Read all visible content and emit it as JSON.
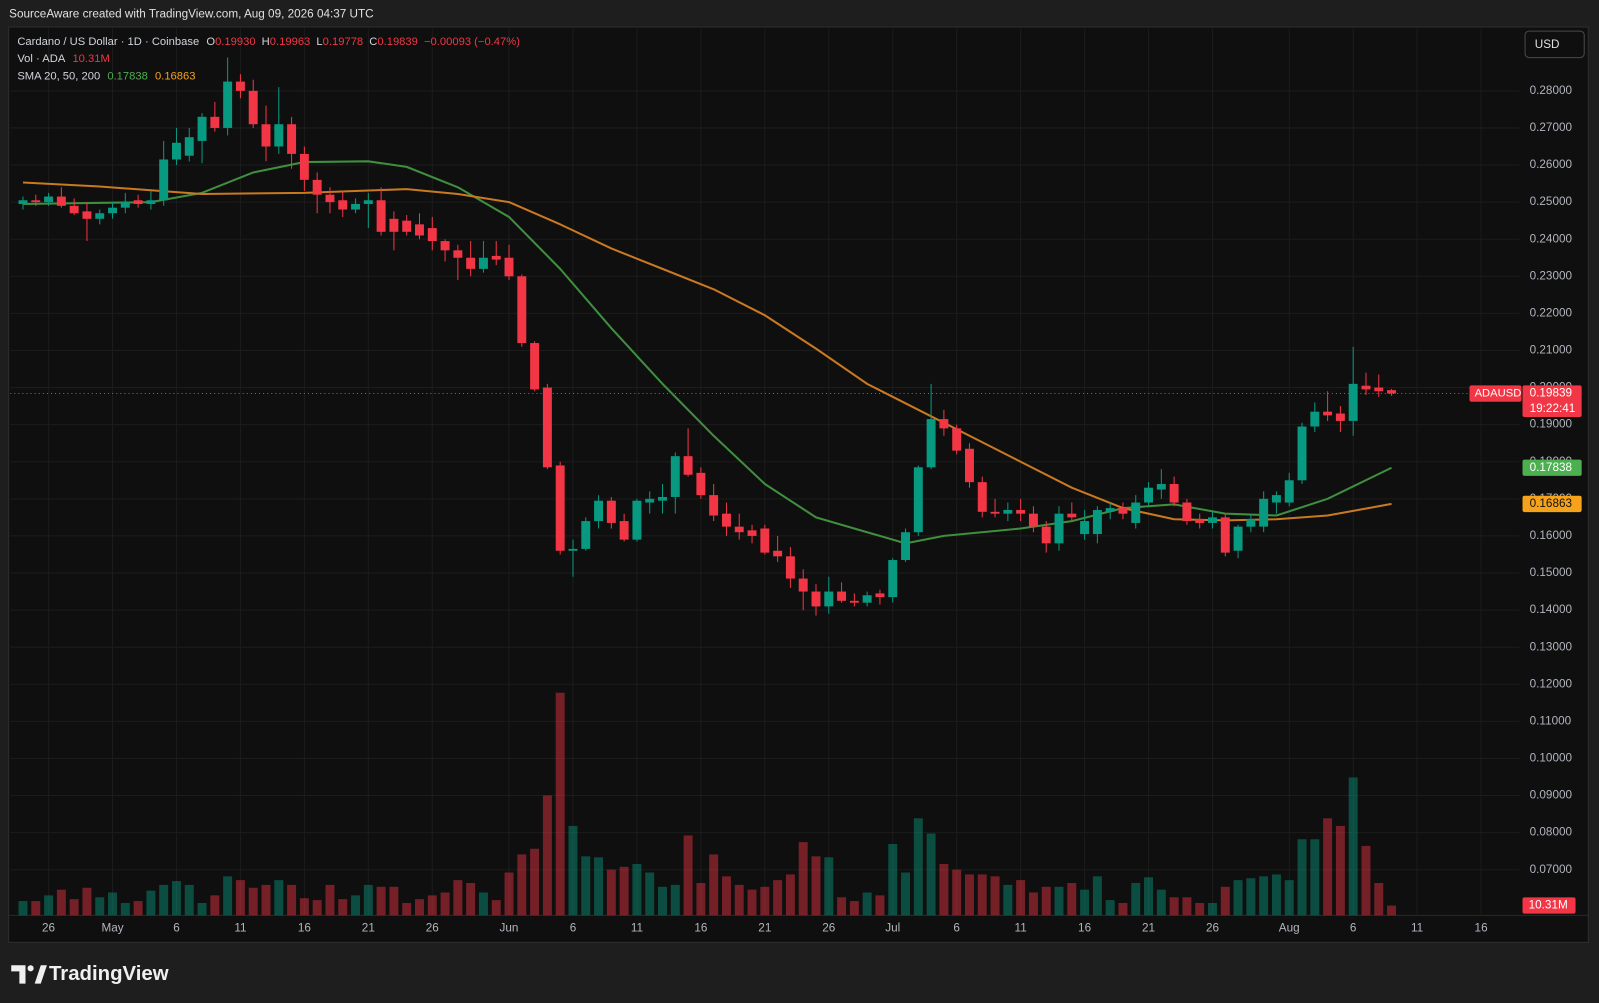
{
  "header": {
    "credit": "SourceAware created with TradingView.com, Aug 09, 2026 04:37 UTC",
    "currency": "USD",
    "brand": "TradingView"
  },
  "chart_data": {
    "type": "candlestick",
    "title": "Cardano / US Dollar · 1D · Coinbase",
    "symbol": "ADAUSD",
    "countdown": "19:22:41",
    "ohlc_keys": [
      "O",
      "H",
      "L",
      "C"
    ],
    "x": [
      "2026-04-24",
      "2026-04-25",
      "2026-04-26",
      "2026-04-27",
      "2026-04-28",
      "2026-04-29",
      "2026-04-30",
      "2026-05-01",
      "2026-05-02",
      "2026-05-03",
      "2026-05-04",
      "2026-05-05",
      "2026-05-06",
      "2026-05-07",
      "2026-05-08",
      "2026-05-09",
      "2026-05-10",
      "2026-05-11",
      "2026-05-12",
      "2026-05-13",
      "2026-05-14",
      "2026-05-15",
      "2026-05-16",
      "2026-05-17",
      "2026-05-18",
      "2026-05-19",
      "2026-05-20",
      "2026-05-21",
      "2026-05-22",
      "2026-05-23",
      "2026-05-24",
      "2026-05-25",
      "2026-05-26",
      "2026-05-27",
      "2026-05-28",
      "2026-05-29",
      "2026-05-30",
      "2026-05-31",
      "2026-06-01",
      "2026-06-02",
      "2026-06-03",
      "2026-06-04",
      "2026-06-05",
      "2026-06-06",
      "2026-06-07",
      "2026-06-08",
      "2026-06-09",
      "2026-06-10",
      "2026-06-11",
      "2026-06-12",
      "2026-06-13",
      "2026-06-14",
      "2026-06-15",
      "2026-06-16",
      "2026-06-17",
      "2026-06-18",
      "2026-06-19",
      "2026-06-20",
      "2026-06-21",
      "2026-06-22",
      "2026-06-23",
      "2026-06-24",
      "2026-06-25",
      "2026-06-26",
      "2026-06-27",
      "2026-06-28",
      "2026-06-29",
      "2026-06-30",
      "2026-07-01",
      "2026-07-02",
      "2026-07-03",
      "2026-07-04",
      "2026-07-05",
      "2026-07-06",
      "2026-07-07",
      "2026-07-08",
      "2026-07-09",
      "2026-07-10",
      "2026-07-11",
      "2026-07-12",
      "2026-07-13",
      "2026-07-14",
      "2026-07-15",
      "2026-07-16",
      "2026-07-17",
      "2026-07-18",
      "2026-07-19",
      "2026-07-20",
      "2026-07-21",
      "2026-07-22",
      "2026-07-23",
      "2026-07-24",
      "2026-07-25",
      "2026-07-26",
      "2026-07-27",
      "2026-07-28",
      "2026-07-29",
      "2026-07-30",
      "2026-07-31",
      "2026-08-01",
      "2026-08-02",
      "2026-08-03",
      "2026-08-04",
      "2026-08-05",
      "2026-08-06",
      "2026-08-07",
      "2026-08-08",
      "2026-08-09"
    ],
    "open": [
      0.2495,
      0.2505,
      0.25,
      0.2515,
      0.249,
      0.2475,
      0.2455,
      0.247,
      0.2485,
      0.2505,
      0.2495,
      0.2505,
      0.2615,
      0.2625,
      0.2665,
      0.273,
      0.27,
      0.2825,
      0.28,
      0.271,
      0.265,
      0.271,
      0.263,
      0.256,
      0.252,
      0.2505,
      0.248,
      0.2495,
      0.2505,
      0.2455,
      0.245,
      0.244,
      0.243,
      0.2395,
      0.237,
      0.235,
      0.232,
      0.2355,
      0.235,
      0.23,
      0.212,
      0.2,
      0.179,
      0.156,
      0.1565,
      0.164,
      0.1695,
      0.164,
      0.159,
      0.169,
      0.1695,
      0.1705,
      0.1815,
      0.177,
      0.171,
      0.166,
      0.1625,
      0.1615,
      0.162,
      0.156,
      0.1545,
      0.1485,
      0.145,
      0.141,
      0.145,
      0.1425,
      0.142,
      0.1445,
      0.1435,
      0.1535,
      0.161,
      0.1785,
      0.1915,
      0.189,
      0.1835,
      0.1745,
      0.1665,
      0.166,
      0.167,
      0.166,
      0.1625,
      0.158,
      0.166,
      0.1605,
      0.1605,
      0.1665,
      0.1675,
      0.1635,
      0.169,
      0.1725,
      0.174,
      0.169,
      0.1645,
      0.1635,
      0.165,
      0.156,
      0.1625,
      0.1625,
      0.169,
      0.169,
      0.175,
      0.1895,
      0.1935,
      0.193,
      0.191,
      0.2005,
      0.2,
      0.1993
    ],
    "high": [
      0.2515,
      0.252,
      0.2525,
      0.254,
      0.251,
      0.25,
      0.248,
      0.25,
      0.2525,
      0.252,
      0.253,
      0.2665,
      0.27,
      0.27,
      0.274,
      0.277,
      0.289,
      0.2845,
      0.283,
      0.276,
      0.281,
      0.273,
      0.265,
      0.258,
      0.254,
      0.253,
      0.251,
      0.2525,
      0.254,
      0.2475,
      0.2465,
      0.247,
      0.246,
      0.24,
      0.2385,
      0.2395,
      0.2395,
      0.2395,
      0.2385,
      0.2305,
      0.2125,
      0.201,
      0.18,
      0.159,
      0.165,
      0.171,
      0.1705,
      0.166,
      0.17,
      0.172,
      0.174,
      0.1825,
      0.189,
      0.1785,
      0.174,
      0.169,
      0.166,
      0.163,
      0.163,
      0.16,
      0.157,
      0.151,
      0.147,
      0.149,
      0.1475,
      0.1445,
      0.145,
      0.1455,
      0.154,
      0.162,
      0.179,
      0.201,
      0.194,
      0.19,
      0.185,
      0.176,
      0.17,
      0.169,
      0.17,
      0.168,
      0.164,
      0.168,
      0.169,
      0.167,
      0.168,
      0.169,
      0.169,
      0.171,
      0.1745,
      0.178,
      0.176,
      0.17,
      0.166,
      0.1665,
      0.166,
      0.163,
      0.166,
      0.172,
      0.172,
      0.177,
      0.1905,
      0.196,
      0.199,
      0.195,
      0.211,
      0.204,
      0.2035,
      0.19963
    ],
    "low": [
      0.248,
      0.249,
      0.249,
      0.2485,
      0.2465,
      0.2395,
      0.244,
      0.2455,
      0.247,
      0.2485,
      0.248,
      0.249,
      0.26,
      0.261,
      0.2605,
      0.269,
      0.268,
      0.278,
      0.27,
      0.261,
      0.263,
      0.259,
      0.253,
      0.247,
      0.247,
      0.246,
      0.247,
      0.243,
      0.241,
      0.237,
      0.241,
      0.24,
      0.237,
      0.234,
      0.229,
      0.23,
      0.231,
      0.233,
      0.229,
      0.211,
      0.199,
      0.178,
      0.155,
      0.149,
      0.156,
      0.162,
      0.162,
      0.1585,
      0.1585,
      0.166,
      0.166,
      0.166,
      0.176,
      0.17,
      0.164,
      0.16,
      0.159,
      0.158,
      0.155,
      0.153,
      0.146,
      0.14,
      0.1385,
      0.139,
      0.142,
      0.141,
      0.141,
      0.1415,
      0.142,
      0.153,
      0.16,
      0.178,
      0.187,
      0.182,
      0.173,
      0.165,
      0.165,
      0.164,
      0.164,
      0.161,
      0.1555,
      0.156,
      0.164,
      0.159,
      0.158,
      0.1645,
      0.1645,
      0.162,
      0.168,
      0.17,
      0.168,
      0.163,
      0.162,
      0.162,
      0.1545,
      0.154,
      0.161,
      0.161,
      0.166,
      0.168,
      0.174,
      0.188,
      0.191,
      0.188,
      0.187,
      0.198,
      0.1975,
      0.19778
    ],
    "close": [
      0.2505,
      0.25,
      0.2515,
      0.249,
      0.247,
      0.2455,
      0.247,
      0.2485,
      0.25,
      0.2495,
      0.2505,
      0.2615,
      0.266,
      0.2675,
      0.273,
      0.27,
      0.2825,
      0.28,
      0.271,
      0.265,
      0.271,
      0.263,
      0.256,
      0.252,
      0.25,
      0.248,
      0.2495,
      0.2505,
      0.242,
      0.242,
      0.242,
      0.241,
      0.2395,
      0.237,
      0.235,
      0.232,
      0.235,
      0.2345,
      0.23,
      0.212,
      0.1995,
      0.1785,
      0.156,
      0.1565,
      0.164,
      0.1695,
      0.1635,
      0.159,
      0.1695,
      0.17,
      0.1705,
      0.1815,
      0.1765,
      0.171,
      0.1655,
      0.1625,
      0.161,
      0.16,
      0.1555,
      0.1545,
      0.1485,
      0.145,
      0.141,
      0.145,
      0.1425,
      0.142,
      0.144,
      0.1435,
      0.1535,
      0.161,
      0.1785,
      0.1915,
      0.189,
      0.183,
      0.1745,
      0.1665,
      0.166,
      0.167,
      0.166,
      0.1625,
      0.158,
      0.166,
      0.165,
      0.164,
      0.167,
      0.1675,
      0.166,
      0.169,
      0.173,
      0.174,
      0.169,
      0.164,
      0.1635,
      0.165,
      0.1555,
      0.1625,
      0.1645,
      0.17,
      0.171,
      0.175,
      0.1895,
      0.1935,
      0.1925,
      0.191,
      0.201,
      0.1995,
      0.199,
      0.19839
    ],
    "last_labels": {
      "open": "0.19930",
      "high": "0.19963",
      "low": "0.19778",
      "close": "0.19839"
    },
    "change_label": "−0.00093 (−0.47%)",
    "colors": {
      "up": "#089981",
      "down": "#f23645"
    },
    "volume": {
      "name": "Vol · ADA",
      "last_label": "10.31M",
      "ylim": [
        0,
        300
      ],
      "values": [
        15,
        15,
        21,
        27,
        17,
        29,
        19,
        24,
        13,
        15,
        26,
        32,
        36,
        32,
        13,
        21,
        41,
        37,
        29,
        32,
        37,
        32,
        18,
        16,
        32,
        17,
        21,
        32,
        30,
        30,
        13,
        17,
        21,
        24,
        37,
        34,
        24,
        16,
        45,
        64,
        70,
        126,
        234,
        94,
        62,
        61,
        48,
        51,
        54,
        45,
        30,
        32,
        84,
        34,
        64,
        41,
        32,
        27,
        30,
        37,
        43,
        77,
        62,
        61,
        19,
        15,
        24,
        21,
        75,
        45,
        102,
        86,
        54,
        48,
        43,
        43,
        41,
        32,
        37,
        24,
        30,
        30,
        34,
        27,
        41,
        16,
        13,
        34,
        40,
        27,
        19,
        19,
        13,
        13,
        30,
        37,
        39,
        41,
        43,
        37,
        80,
        80,
        102,
        94,
        145,
        73,
        34,
        10.31
      ]
    },
    "indicator_name": "SMA 20, 50, 200",
    "series": [
      {
        "color": "#3f8f3f",
        "last_label": "0.17838",
        "x": [
          "2026-04-24",
          "2026-05-04",
          "2026-05-08",
          "2026-05-12",
          "2026-05-16",
          "2026-05-21",
          "2026-05-24",
          "2026-05-28",
          "2026-06-01",
          "2026-06-05",
          "2026-06-09",
          "2026-06-13",
          "2026-06-17",
          "2026-06-21",
          "2026-06-25",
          "2026-06-29",
          "2026-07-02",
          "2026-07-05",
          "2026-07-11",
          "2026-07-15",
          "2026-07-19",
          "2026-07-23",
          "2026-07-27",
          "2026-07-31",
          "2026-08-04",
          "2026-08-09"
        ],
        "values": [
          0.2495,
          0.25,
          0.2525,
          0.258,
          0.2608,
          0.261,
          0.2595,
          0.254,
          0.246,
          0.232,
          0.216,
          0.201,
          0.187,
          0.174,
          0.165,
          0.161,
          0.158,
          0.16,
          0.162,
          0.164,
          0.1675,
          0.1685,
          0.166,
          0.1655,
          0.17,
          0.17838
        ]
      },
      {
        "color": "#c97a20",
        "last_label": "0.16863",
        "x": [
          "2026-04-24",
          "2026-04-30",
          "2026-05-08",
          "2026-05-16",
          "2026-05-24",
          "2026-05-28",
          "2026-06-01",
          "2026-06-05",
          "2026-06-09",
          "2026-06-13",
          "2026-06-17",
          "2026-06-21",
          "2026-06-25",
          "2026-06-29",
          "2026-07-03",
          "2026-07-07",
          "2026-07-11",
          "2026-07-15",
          "2026-07-19",
          "2026-07-23",
          "2026-07-27",
          "2026-07-31",
          "2026-08-04",
          "2026-08-09"
        ],
        "values": [
          0.2553,
          0.2542,
          0.2522,
          0.2525,
          0.2535,
          0.2522,
          0.25,
          0.244,
          0.2375,
          0.232,
          0.2265,
          0.2195,
          0.2105,
          0.201,
          0.194,
          0.187,
          0.18,
          0.173,
          0.1675,
          0.1645,
          0.1642,
          0.1645,
          0.1655,
          0.16863
        ]
      }
    ],
    "xlim": [
      "2026-04-23",
      "2026-08-19"
    ],
    "xticks": [
      {
        "value": "2026-04-26",
        "label": "26"
      },
      {
        "value": "2026-05-01",
        "label": "May"
      },
      {
        "value": "2026-05-06",
        "label": "6"
      },
      {
        "value": "2026-05-11",
        "label": "11"
      },
      {
        "value": "2026-05-16",
        "label": "16"
      },
      {
        "value": "2026-05-21",
        "label": "21"
      },
      {
        "value": "2026-05-26",
        "label": "26"
      },
      {
        "value": "2026-06-01",
        "label": "Jun"
      },
      {
        "value": "2026-06-06",
        "label": "6"
      },
      {
        "value": "2026-06-11",
        "label": "11"
      },
      {
        "value": "2026-06-16",
        "label": "16"
      },
      {
        "value": "2026-06-21",
        "label": "21"
      },
      {
        "value": "2026-06-26",
        "label": "26"
      },
      {
        "value": "2026-07-01",
        "label": "Jul"
      },
      {
        "value": "2026-07-06",
        "label": "6"
      },
      {
        "value": "2026-07-11",
        "label": "11"
      },
      {
        "value": "2026-07-16",
        "label": "16"
      },
      {
        "value": "2026-07-21",
        "label": "21"
      },
      {
        "value": "2026-07-26",
        "label": "26"
      },
      {
        "value": "2026-08-01",
        "label": "Aug"
      },
      {
        "value": "2026-08-06",
        "label": "6"
      },
      {
        "value": "2026-08-11",
        "label": "11"
      },
      {
        "value": "2026-08-16",
        "label": "16"
      }
    ],
    "ylim": [
      0.0577,
      0.2968
    ],
    "yticks": [
      {
        "value": 0.28,
        "label": "0.28000"
      },
      {
        "value": 0.27,
        "label": "0.27000"
      },
      {
        "value": 0.26,
        "label": "0.26000"
      },
      {
        "value": 0.25,
        "label": "0.25000"
      },
      {
        "value": 0.24,
        "label": "0.24000"
      },
      {
        "value": 0.23,
        "label": "0.23000"
      },
      {
        "value": 0.22,
        "label": "0.22000"
      },
      {
        "value": 0.21,
        "label": "0.21000"
      },
      {
        "value": 0.2,
        "label": "0.20000"
      },
      {
        "value": 0.19,
        "label": "0.19000"
      },
      {
        "value": 0.18,
        "label": "0.18000"
      },
      {
        "value": 0.17,
        "label": "0.17000"
      },
      {
        "value": 0.16,
        "label": "0.16000"
      },
      {
        "value": 0.15,
        "label": "0.15000"
      },
      {
        "value": 0.14,
        "label": "0.14000"
      },
      {
        "value": 0.13,
        "label": "0.13000"
      },
      {
        "value": 0.12,
        "label": "0.12000"
      },
      {
        "value": 0.11,
        "label": "0.11000"
      },
      {
        "value": 0.1,
        "label": "0.10000"
      },
      {
        "value": 0.09,
        "label": "0.09000"
      },
      {
        "value": 0.08,
        "label": "0.08000"
      },
      {
        "value": 0.07,
        "label": "0.07000"
      }
    ],
    "grid": true
  }
}
